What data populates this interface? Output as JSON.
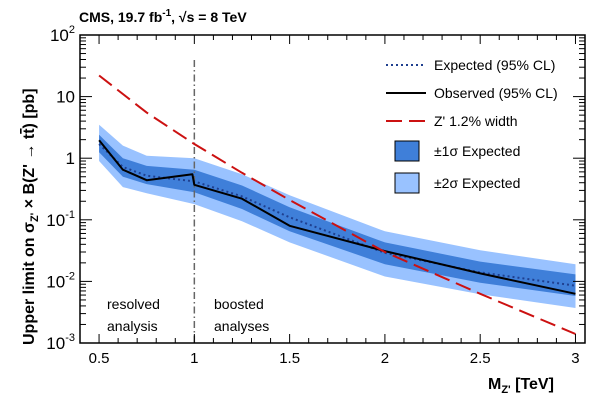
{
  "header": {
    "experiment": "CMS, 19.7 fb",
    "lumi_exp": "-1",
    "energy": ", √s = 8 TeV"
  },
  "chart_data": {
    "type": "line",
    "xlabel": "M",
    "xlabel_sub": "Z'",
    "xlabel_unit": " [TeV]",
    "ylabel": "Upper limit on σZ' × B(Z' → tt̄) [pb]",
    "ylabel_parts": {
      "prefix": "Upper limit on σ",
      "sub": "Z'",
      "mid": " × B(Z' → t",
      "tbar": "t",
      "suffix": ") [pb]"
    },
    "xlim": [
      0.4,
      3.05
    ],
    "ylim": [
      0.001,
      100
    ],
    "yscale": "log",
    "x_ticks": [
      0.5,
      1,
      1.5,
      2,
      2.5,
      3
    ],
    "x_tick_labels": [
      "0.5",
      "1",
      "1.5",
      "2",
      "2.5",
      "3"
    ],
    "y_ticks": [
      {
        "mant": "10",
        "exp": "-3",
        "value": 0.001
      },
      {
        "mant": "10",
        "exp": "-2",
        "value": 0.01
      },
      {
        "mant": "10",
        "exp": "-1",
        "value": 0.1
      },
      {
        "mant": "1",
        "exp": "",
        "value": 1
      },
      {
        "mant": "10",
        "exp": "",
        "value": 10
      },
      {
        "mant": "10",
        "exp": "2",
        "value": 100
      }
    ],
    "divider_x": 1.0,
    "region_labels": [
      {
        "lines": [
          "resolved",
          "analysis"
        ]
      },
      {
        "lines": [
          "boosted",
          "analyses"
        ]
      }
    ],
    "colors": {
      "expected": "#1f3f8f",
      "observed": "#000000",
      "zprime": "#cc1111",
      "band1": "#3f7fd9",
      "band2": "#99c2ff",
      "divider": "#666666"
    },
    "bands": {
      "x": [
        0.5,
        0.625,
        0.75,
        1.0,
        1.25,
        1.5,
        2.0,
        2.5,
        3.0
      ],
      "two_sigma_up": [
        3.5,
        1.6,
        1.1,
        1.0,
        0.55,
        0.25,
        0.065,
        0.032,
        0.019
      ],
      "one_sigma_up": [
        2.4,
        1.0,
        0.75,
        0.65,
        0.36,
        0.16,
        0.043,
        0.021,
        0.013
      ],
      "one_sigma_down": [
        1.25,
        0.5,
        0.38,
        0.28,
        0.15,
        0.065,
        0.019,
        0.0095,
        0.0058
      ],
      "two_sigma_down": [
        0.9,
        0.34,
        0.27,
        0.18,
        0.095,
        0.043,
        0.012,
        0.0062,
        0.0037
      ]
    },
    "series": [
      {
        "name": "Expected (95% CL)",
        "style": "dotted",
        "x": [
          0.5,
          0.625,
          0.75,
          1.0,
          1.25,
          1.5,
          2.0,
          2.5,
          3.0
        ],
        "y": [
          1.7,
          0.72,
          0.52,
          0.42,
          0.24,
          0.11,
          0.029,
          0.014,
          0.0085
        ]
      },
      {
        "name": "Observed (95% CL)",
        "style": "solid",
        "x": [
          0.5,
          0.625,
          0.75,
          0.99,
          1.0,
          1.25,
          1.5,
          2.0,
          2.5,
          3.0
        ],
        "y": [
          1.95,
          0.65,
          0.44,
          0.55,
          0.37,
          0.22,
          0.08,
          0.031,
          0.0135,
          0.0063
        ]
      },
      {
        "name": "Z' 1.2% width",
        "style": "dashed",
        "x": [
          0.5,
          0.75,
          1.0,
          1.25,
          1.5,
          2.0,
          2.5,
          3.0
        ],
        "y": [
          22,
          5.5,
          1.7,
          0.58,
          0.21,
          0.03,
          0.0063,
          0.0014
        ]
      }
    ],
    "legend": {
      "position": "top-right",
      "entries": [
        {
          "label": "Expected (95% CL)"
        },
        {
          "label": "Observed (95% CL)"
        },
        {
          "label": "Z' 1.2% width"
        },
        {
          "label": "±1σ Expected"
        },
        {
          "label": "±2σ Expected"
        }
      ]
    }
  }
}
